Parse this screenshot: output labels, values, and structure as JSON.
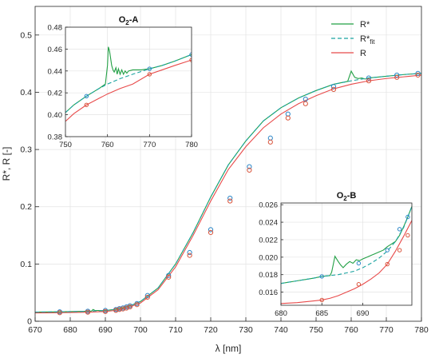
{
  "colors": {
    "rstar": "#22a045",
    "rfit": "#1aa3a0",
    "r": "#e84a4a",
    "marker_fit": "#2b86c8",
    "marker_r": "#d9533a",
    "axis": "#262626",
    "grid": "#e3e3e3"
  },
  "chart_data": [
    {
      "type": "line",
      "xlabel": "λ [nm]",
      "ylabel": "R*, R [-]",
      "xlim": [
        670,
        780
      ],
      "ylim": [
        0,
        0.55
      ],
      "xticks": [
        670,
        680,
        690,
        700,
        710,
        720,
        730,
        740,
        750,
        760,
        770,
        780
      ],
      "yticks": [
        0,
        0.1,
        0.2,
        0.3,
        0.4,
        0.5
      ],
      "grid": true,
      "legend_position": "top-right",
      "legend": [
        {
          "key": "rstar",
          "label": "R*",
          "style": "solid"
        },
        {
          "key": "rfit",
          "label": "R*",
          "sub": "fit",
          "style": "dashed"
        },
        {
          "key": "r",
          "label": "R",
          "style": "solid"
        }
      ],
      "series": [
        {
          "key": "r",
          "x": [
            670,
            675,
            680,
            685,
            690,
            693,
            695,
            697,
            700,
            705,
            710,
            715,
            720,
            725,
            730,
            735,
            740,
            745,
            750,
            755,
            760,
            765,
            770,
            775,
            780
          ],
          "y": [
            0.0145,
            0.0148,
            0.0152,
            0.0158,
            0.017,
            0.019,
            0.0215,
            0.025,
            0.032,
            0.055,
            0.095,
            0.15,
            0.21,
            0.265,
            0.305,
            0.338,
            0.362,
            0.38,
            0.394,
            0.406,
            0.414,
            0.42,
            0.424,
            0.427,
            0.43
          ]
        },
        {
          "key": "rfit",
          "x": [
            670,
            675,
            680,
            685,
            690,
            693,
            695,
            697,
            700,
            705,
            710,
            715,
            720,
            725,
            730,
            735,
            740,
            745,
            750,
            755,
            760,
            765,
            770,
            775,
            780
          ],
          "y": [
            0.016,
            0.0163,
            0.0168,
            0.0175,
            0.0188,
            0.0208,
            0.0232,
            0.027,
            0.0345,
            0.058,
            0.1,
            0.155,
            0.217,
            0.273,
            0.315,
            0.35,
            0.373,
            0.39,
            0.403,
            0.414,
            0.42,
            0.425,
            0.428,
            0.431,
            0.433
          ]
        },
        {
          "key": "rstar",
          "x": [
            670,
            675,
            680,
            685,
            686,
            686.5,
            687,
            688,
            689,
            690,
            693,
            695,
            697,
            700,
            705,
            710,
            715,
            720,
            725,
            730,
            735,
            740,
            745,
            750,
            755,
            759,
            760,
            761,
            762,
            763,
            764,
            765,
            770,
            775,
            780
          ],
          "y": [
            0.016,
            0.0163,
            0.0168,
            0.0175,
            0.0176,
            0.0205,
            0.019,
            0.0188,
            0.0186,
            0.0188,
            0.0208,
            0.0232,
            0.027,
            0.0345,
            0.058,
            0.1,
            0.155,
            0.217,
            0.273,
            0.315,
            0.35,
            0.373,
            0.39,
            0.403,
            0.414,
            0.419,
            0.437,
            0.426,
            0.424,
            0.425,
            0.423,
            0.425,
            0.428,
            0.431,
            0.433
          ]
        }
      ],
      "markers": [
        {
          "key": "rfit",
          "x": [
            677,
            685,
            690,
            693,
            694,
            695,
            696,
            697,
            699,
            702,
            708,
            714,
            720,
            725.5,
            731,
            737,
            742,
            747,
            755,
            765,
            773,
            779
          ],
          "y": [
            0.0165,
            0.0175,
            0.0188,
            0.0205,
            0.022,
            0.0232,
            0.025,
            0.027,
            0.031,
            0.045,
            0.08,
            0.12,
            0.16,
            0.215,
            0.27,
            0.32,
            0.362,
            0.388,
            0.41,
            0.425,
            0.43,
            0.433
          ]
        },
        {
          "key": "r",
          "x": [
            677,
            685,
            690,
            693,
            694,
            695,
            696,
            697,
            699,
            702,
            708,
            714,
            720,
            725.5,
            731,
            737,
            742,
            747,
            755,
            765,
            773,
            779
          ],
          "y": [
            0.015,
            0.0158,
            0.017,
            0.019,
            0.0205,
            0.0215,
            0.023,
            0.025,
            0.029,
            0.042,
            0.077,
            0.115,
            0.155,
            0.21,
            0.264,
            0.313,
            0.355,
            0.38,
            0.405,
            0.42,
            0.426,
            0.43
          ]
        }
      ]
    },
    {
      "type": "line",
      "title": "O",
      "title_sub": "2",
      "title_tail": "-A",
      "xlim": [
        750,
        780
      ],
      "ylim": [
        0.38,
        0.48
      ],
      "xticks": [
        750,
        760,
        770,
        780
      ],
      "yticks": [
        0.38,
        0.4,
        0.42,
        0.44,
        0.46,
        0.48
      ],
      "ytick_labels": [
        "0.38",
        "0.40",
        "0.42",
        "0.44",
        "0.46",
        "0.48"
      ],
      "grid": true,
      "series": [
        {
          "key": "r",
          "x": [
            750,
            752,
            755,
            758,
            760,
            763,
            766,
            770,
            773,
            776,
            780
          ],
          "y": [
            0.394,
            0.401,
            0.409,
            0.415,
            0.419,
            0.424,
            0.428,
            0.437,
            0.441,
            0.445,
            0.45
          ]
        },
        {
          "key": "rfit",
          "x": [
            750,
            752,
            755,
            758,
            760,
            763,
            766,
            770,
            773,
            776,
            780
          ],
          "y": [
            0.402,
            0.409,
            0.417,
            0.424,
            0.428,
            0.433,
            0.437,
            0.442,
            0.445,
            0.449,
            0.455
          ]
        },
        {
          "key": "rstar",
          "x": [
            750,
            752,
            755,
            758,
            759.5,
            760,
            760.2,
            760.5,
            761,
            761.3,
            761.6,
            762,
            762.3,
            762.6,
            763,
            763.4,
            763.8,
            764.2,
            764.6,
            765,
            766,
            768,
            770,
            773,
            776,
            780
          ],
          "y": [
            0.402,
            0.409,
            0.417,
            0.424,
            0.428,
            0.445,
            0.462,
            0.458,
            0.445,
            0.441,
            0.439,
            0.443,
            0.437,
            0.442,
            0.437,
            0.441,
            0.437,
            0.44,
            0.438,
            0.44,
            0.441,
            0.441,
            0.442,
            0.445,
            0.449,
            0.455
          ]
        }
      ],
      "markers": [
        {
          "key": "rfit",
          "x": [
            755,
            770,
            780
          ],
          "y": [
            0.417,
            0.442,
            0.455
          ]
        },
        {
          "key": "r",
          "x": [
            755,
            770,
            780
          ],
          "y": [
            0.409,
            0.437,
            0.45
          ]
        }
      ]
    },
    {
      "type": "line",
      "title": "O",
      "title_sub": "2",
      "title_tail": "-B",
      "xlim": [
        680,
        696
      ],
      "ylim": [
        0.0145,
        0.0262
      ],
      "xticks": [
        680,
        685,
        690
      ],
      "yticks": [
        0.016,
        0.018,
        0.02,
        0.022,
        0.024,
        0.026
      ],
      "ytick_labels": [
        "0.016",
        "0.018",
        "0.020",
        "0.022",
        "0.024",
        "0.026"
      ],
      "grid": true,
      "series": [
        {
          "key": "r",
          "x": [
            680,
            682,
            684,
            685,
            686,
            687,
            688,
            689,
            690,
            691,
            692,
            693,
            694,
            695,
            696
          ],
          "y": [
            0.0147,
            0.0148,
            0.015,
            0.0151,
            0.0153,
            0.0156,
            0.016,
            0.0164,
            0.0169,
            0.0175,
            0.0182,
            0.0192,
            0.0207,
            0.0224,
            0.0242
          ]
        },
        {
          "key": "rfit",
          "x": [
            680,
            682,
            684,
            685,
            686,
            687,
            688,
            689,
            690,
            691,
            692,
            693,
            694,
            695,
            696
          ],
          "y": [
            0.017,
            0.0173,
            0.0176,
            0.0178,
            0.0179,
            0.018,
            0.0182,
            0.0184,
            0.0188,
            0.0193,
            0.0199,
            0.0207,
            0.0218,
            0.0234,
            0.0258
          ]
        },
        {
          "key": "rstar",
          "x": [
            680,
            682,
            684,
            685,
            686,
            686.2,
            686.6,
            687,
            687.3,
            687.6,
            688,
            688.4,
            688.8,
            689.2,
            689.6,
            690,
            690.5,
            691,
            691.5,
            692,
            692.5,
            693,
            693.5,
            694,
            694.5,
            695,
            695.5,
            696
          ],
          "y": [
            0.017,
            0.0173,
            0.0176,
            0.0178,
            0.0179,
            0.0183,
            0.0201,
            0.0195,
            0.0191,
            0.0188,
            0.0192,
            0.0195,
            0.0193,
            0.0197,
            0.0196,
            0.0198,
            0.02,
            0.0202,
            0.0204,
            0.0206,
            0.0208,
            0.0212,
            0.0215,
            0.0218,
            0.0225,
            0.0235,
            0.0246,
            0.0258
          ]
        }
      ],
      "markers": [
        {
          "key": "rfit",
          "x": [
            685,
            689.5,
            693,
            694.5,
            695.5
          ],
          "y": [
            0.0178,
            0.0193,
            0.0208,
            0.0232,
            0.0246
          ]
        },
        {
          "key": "r",
          "x": [
            685,
            689.5,
            693,
            694.5,
            695.5
          ],
          "y": [
            0.0151,
            0.0169,
            0.0192,
            0.0208,
            0.0225
          ]
        }
      ]
    }
  ]
}
